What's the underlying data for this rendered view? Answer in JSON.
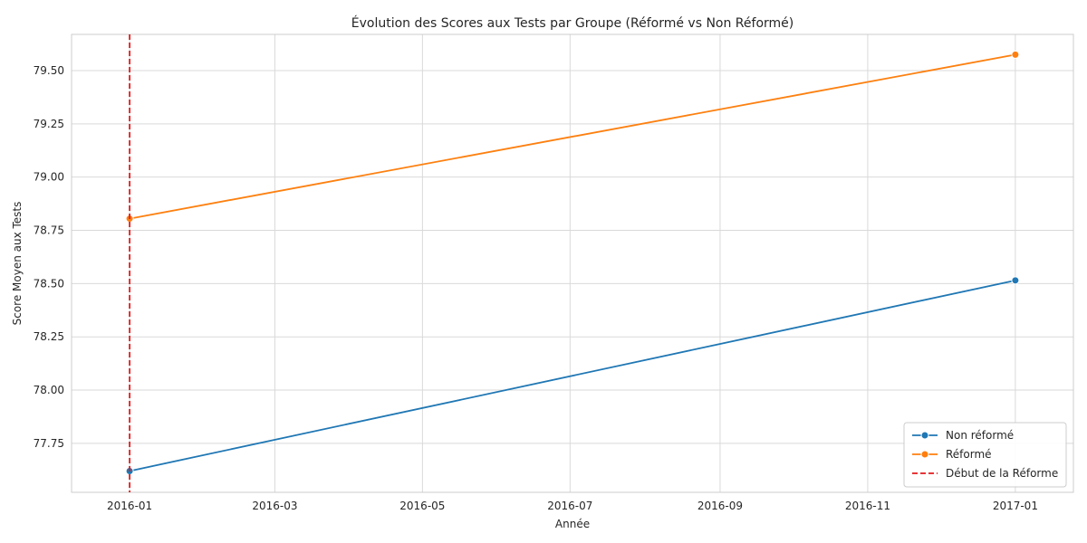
{
  "chart_data": {
    "type": "line",
    "title": "Évolution des Scores aux Tests par Groupe (Réformé vs Non Réformé)",
    "xlabel": "Année",
    "ylabel": "Score Moyen aux Tests",
    "x_ticks": [
      "2016-01",
      "2016-03",
      "2016-05",
      "2016-07",
      "2016-09",
      "2016-11",
      "2017-01"
    ],
    "y_ticks": [
      "77.75",
      "78.00",
      "78.25",
      "78.50",
      "78.75",
      "79.00",
      "79.25",
      "79.50"
    ],
    "ylim": [
      77.52,
      79.67
    ],
    "xlim": [
      "2015-12-08",
      "2017-01-25"
    ],
    "grid": true,
    "legend_position": "bottom-right",
    "series": [
      {
        "name": "Non réformé",
        "color": "#1f77b4",
        "marker": "circle",
        "x": [
          "2016-01-01",
          "2017-01-01"
        ],
        "y": [
          77.62,
          78.515
        ]
      },
      {
        "name": "Réformé",
        "color": "#ff7f0e",
        "marker": "circle",
        "x": [
          "2016-01-01",
          "2017-01-01"
        ],
        "y": [
          78.805,
          79.575
        ]
      }
    ],
    "reference_lines": [
      {
        "name": "Début de la Réforme",
        "x": "2016-01-01",
        "color": "#e31a1c",
        "style": "dashed"
      }
    ]
  }
}
